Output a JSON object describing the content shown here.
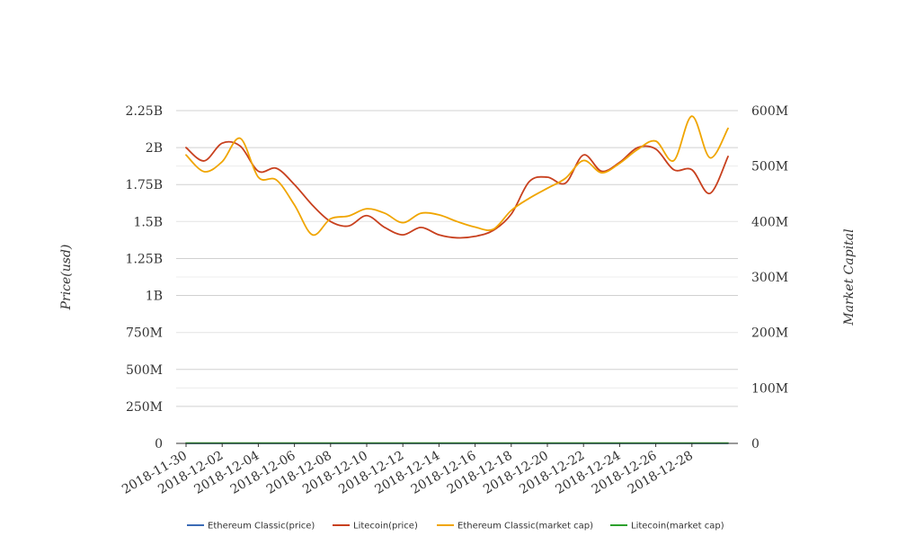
{
  "chart_data": {
    "type": "line",
    "title": "",
    "ylabel": "Price(usd)",
    "y2label": "Market Capital",
    "ylim": [
      0,
      2250000000
    ],
    "y2lim": [
      0,
      600000000
    ],
    "y_ticks": [
      "0",
      "250M",
      "500M",
      "750M",
      "1B",
      "1.25B",
      "1.5B",
      "1.75B",
      "2B",
      "2.25B"
    ],
    "y2_ticks": [
      "0",
      "100M",
      "200M",
      "300M",
      "400M",
      "500M",
      "600M"
    ],
    "x_tick_labels": [
      "2018-11-30",
      "2018-12-02",
      "2018-12-04",
      "2018-12-06",
      "2018-12-08",
      "2018-12-10",
      "2018-12-12",
      "2018-12-14",
      "2018-12-16",
      "2018-12-18",
      "2018-12-20",
      "2018-12-22",
      "2018-12-24",
      "2018-12-26",
      "2018-12-28"
    ],
    "x": [
      "2018-11-30",
      "2018-12-01",
      "2018-12-02",
      "2018-12-03",
      "2018-12-04",
      "2018-12-05",
      "2018-12-06",
      "2018-12-07",
      "2018-12-08",
      "2018-12-09",
      "2018-12-10",
      "2018-12-11",
      "2018-12-12",
      "2018-12-13",
      "2018-12-14",
      "2018-12-15",
      "2018-12-16",
      "2018-12-17",
      "2018-12-18",
      "2018-12-19",
      "2018-12-20",
      "2018-12-21",
      "2018-12-22",
      "2018-12-23",
      "2018-12-24",
      "2018-12-25",
      "2018-12-26",
      "2018-12-27",
      "2018-12-28",
      "2018-12-29",
      "2018-12-30"
    ],
    "legend_position": "bottom",
    "grid": true,
    "series": [
      {
        "name": "Ethereum Classic(price)",
        "axis": "left",
        "color": "#3b6bb5",
        "values": [
          4.9,
          4.7,
          4.9,
          5.6,
          5.0,
          4.8,
          4.3,
          3.8,
          3.9,
          3.8,
          4.0,
          3.8,
          3.7,
          3.8,
          3.7,
          3.6,
          3.5,
          3.5,
          4.0,
          4.3,
          4.5,
          4.9,
          4.8,
          5.0,
          5.3,
          5.4,
          5.1,
          5.6,
          5.1,
          5.3,
          5.6
        ]
      },
      {
        "name": "Litecoin(price)",
        "axis": "left",
        "color": "#c8401e",
        "values": [
          2000000000,
          1910000000,
          2030000000,
          2010000000,
          1840000000,
          1860000000,
          1750000000,
          1610000000,
          1500000000,
          1470000000,
          1540000000,
          1460000000,
          1410000000,
          1460000000,
          1410000000,
          1390000000,
          1400000000,
          1440000000,
          1550000000,
          1770000000,
          1800000000,
          1760000000,
          1950000000,
          1840000000,
          1900000000,
          2000000000,
          1990000000,
          1850000000,
          1850000000,
          1690000000,
          1940000000
        ]
      },
      {
        "name": "Ethereum Classic(market cap)",
        "axis": "right",
        "color": "#f0a500",
        "values": [
          520000000,
          490000000,
          508000000,
          550000000,
          480000000,
          475000000,
          430000000,
          376000000,
          405000000,
          410000000,
          423000000,
          415000000,
          398000000,
          415000000,
          412000000,
          400000000,
          390000000,
          386000000,
          420000000,
          442000000,
          460000000,
          478000000,
          510000000,
          488000000,
          505000000,
          530000000,
          545000000,
          510000000,
          590000000,
          515000000,
          568000000
        ]
      },
      {
        "name": "Litecoin(market cap)",
        "axis": "right",
        "color": "#2ca02c",
        "values": [
          520000,
          520000,
          520000,
          520000,
          520000,
          520000,
          520000,
          520000,
          520000,
          520000,
          520000,
          520000,
          520000,
          520000,
          520000,
          520000,
          520000,
          520000,
          520000,
          520000,
          520000,
          520000,
          520000,
          520000,
          520000,
          520000,
          520000,
          520000,
          520000,
          520000,
          520000
        ]
      }
    ]
  }
}
